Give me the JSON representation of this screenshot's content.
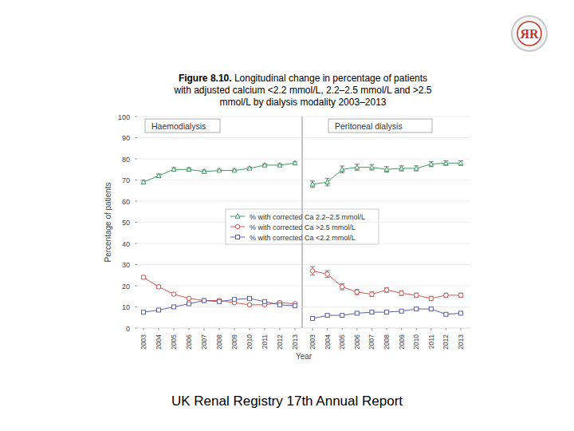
{
  "page": {
    "logo": "ЯR",
    "figure_label": "Figure 8.10.",
    "title": "Longitudinal change in percentage of patients with adjusted calcium <2.2 mmol/L, 2.2–2.5 mmol/L and >2.5 mmol/L by dialysis modality 2003–2013",
    "footer": "UK Renal Registry 17th Annual Report"
  },
  "chart_data": [
    {
      "type": "line",
      "panel_title": "Haemodialysis",
      "y_label": "Percentage of patients",
      "x_label": "Year",
      "categories": [
        "2003",
        "2004",
        "2005",
        "2006",
        "2007",
        "2008",
        "2009",
        "2010",
        "2011",
        "2012",
        "2013"
      ],
      "ylim": [
        0,
        100
      ],
      "yticks": [
        0,
        10,
        20,
        30,
        40,
        50,
        60,
        70,
        80,
        90,
        100
      ],
      "grid": true,
      "legend": "center",
      "series": [
        {
          "name": "% with corrected Ca 2.2–2.5 mmol/L",
          "color": "#3c9a5f",
          "marker": "triangle",
          "line_style": "solid",
          "values": [
            69,
            72,
            75,
            75,
            74,
            74.5,
            74.5,
            75.5,
            77,
            77,
            78
          ],
          "error": [
            0.8,
            0.8,
            0.8,
            0.7,
            0.7,
            0.6,
            0.6,
            0.6,
            0.6,
            0.6,
            0.6
          ]
        },
        {
          "name": "% with corrected Ca >2.5 mmol/L",
          "color": "#d9534f",
          "marker": "circle",
          "line_style": "solid",
          "values": [
            24,
            19.5,
            16,
            14,
            13,
            13,
            12,
            11,
            11,
            12,
            11.5
          ],
          "error": [
            0.8,
            0.7,
            0.6,
            0.5,
            0.5,
            0.5,
            0.5,
            0.5,
            0.5,
            0.5,
            0.5
          ]
        },
        {
          "name": "% with corrected Ca <2.2 mmol/L",
          "color": "#5a5fa8",
          "marker": "square",
          "line_style": "solid",
          "values": [
            7.5,
            8.5,
            10,
            11.5,
            13,
            12.5,
            13.5,
            14,
            12.5,
            11,
            10.5
          ],
          "error": [
            0.5,
            0.5,
            0.5,
            0.5,
            0.5,
            0.5,
            0.5,
            0.5,
            0.5,
            0.5,
            0.5
          ]
        }
      ]
    },
    {
      "type": "line",
      "panel_title": "Peritoneal dialysis",
      "tick_labels": "x",
      "categories": [
        "2003",
        "2004",
        "2005",
        "2006",
        "2007",
        "2008",
        "2009",
        "2010",
        "2011",
        "2012",
        "2013"
      ],
      "ylim": [
        0,
        100
      ],
      "yticks": [
        0,
        10,
        20,
        30,
        40,
        50,
        60,
        70,
        80,
        90,
        100
      ],
      "grid": true,
      "series": [
        {
          "color": "#3c9a5f",
          "marker": "triangle",
          "line_style": "solid",
          "values": [
            68,
            69,
            75,
            76,
            76,
            75,
            75.5,
            75.5,
            77.5,
            78,
            78
          ],
          "error": [
            1.5,
            1.8,
            1.6,
            1.4,
            1.3,
            1.3,
            1.2,
            1.2,
            1.2,
            1.1,
            1.1
          ]
        },
        {
          "color": "#d9534f",
          "marker": "circle",
          "line_style": "solid",
          "values": [
            27,
            25.5,
            19.5,
            17,
            16,
            18,
            16.5,
            15.5,
            14,
            15.5,
            15.5
          ],
          "error": [
            2,
            1.6,
            1.4,
            1.2,
            1.1,
            1.1,
            1.1,
            1,
            1,
            1,
            1
          ]
        },
        {
          "color": "#5a5fa8",
          "marker": "square",
          "line_style": "solid",
          "values": [
            4.5,
            6,
            6,
            7,
            7.5,
            7.5,
            8,
            9,
            9,
            6.5,
            7
          ],
          "error": [
            0.8,
            0.8,
            0.8,
            0.7,
            0.7,
            0.7,
            0.7,
            0.7,
            0.7,
            0.6,
            0.6
          ]
        }
      ]
    }
  ]
}
